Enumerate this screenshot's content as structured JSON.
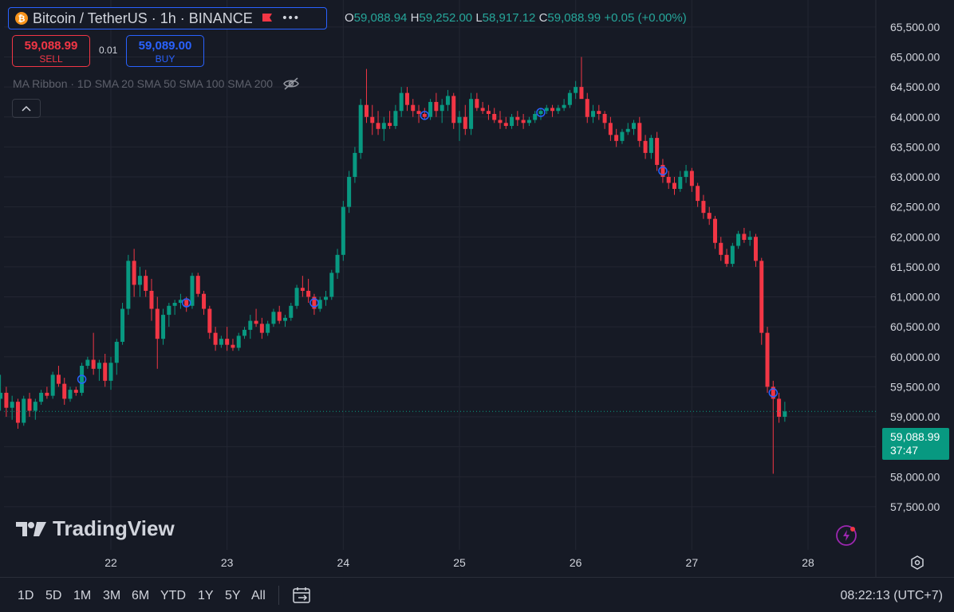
{
  "header": {
    "symbol_label": "Bitcoin / TetherUS · 1h · BINANCE",
    "coin_glyph": "₿",
    "ohlc": {
      "o_key": "O",
      "o": "59,088.94",
      "h_key": "H",
      "h": "59,252.00",
      "l_key": "L",
      "l": "58,917.12",
      "c_key": "C",
      "c": "59,088.99",
      "change": "+0.05 (+0.00%)"
    }
  },
  "trade": {
    "sell_price": "59,088.99",
    "sell_label": "SELL",
    "buy_price": "59,089.00",
    "buy_label": "BUY",
    "spread": "0.01"
  },
  "indicator": {
    "label": "MA Ribbon · 1D SMA 20 SMA 50 SMA 100 SMA 200"
  },
  "last_price": {
    "price": "59,088.99",
    "countdown": "37:47"
  },
  "watermark": {
    "text": "TradingView"
  },
  "bottom": {
    "ranges": [
      "1D",
      "5D",
      "1M",
      "3M",
      "6M",
      "YTD",
      "1Y",
      "5Y",
      "All"
    ],
    "clock": "08:22:13 (UTC+7)"
  },
  "colors": {
    "up": "#089981",
    "down": "#f23645",
    "accent": "#2962ff",
    "bg": "#161a25",
    "grid": "#232632",
    "marker": "#1e3a8a"
  },
  "chart_data": {
    "type": "candlestick",
    "title": "Bitcoin / TetherUS · 1h · BINANCE",
    "ylim": [
      57250,
      65750
    ],
    "y_ticks": [
      57500,
      58000,
      58500,
      59000,
      59500,
      60000,
      60500,
      61000,
      61500,
      62000,
      62500,
      63000,
      63500,
      64000,
      64500,
      65000,
      65500
    ],
    "y_tick_labels": [
      "57,500.00",
      "58,000.00",
      "58,500.00",
      "59,000.00",
      "59,500.00",
      "60,000.00",
      "60,500.00",
      "61,000.00",
      "61,500.00",
      "62,000.00",
      "62,500.00",
      "63,000.00",
      "63,500.00",
      "64,000.00",
      "64,500.00",
      "65,000.00",
      "65,500.00"
    ],
    "x_ticks": [
      22,
      23,
      24,
      25,
      26,
      27,
      28
    ],
    "x_tick_labels": [
      "22",
      "23",
      "24",
      "25",
      "26",
      "27",
      "28"
    ],
    "x_range": [
      21,
      28.5
    ],
    "grid": true,
    "last_close": 59088.99,
    "ohlc_points": [
      [
        21.05,
        59300,
        59700,
        59100,
        59400
      ],
      [
        21.1,
        59400,
        59500,
        59000,
        59150
      ],
      [
        21.15,
        59150,
        59350,
        58950,
        59250
      ],
      [
        21.2,
        59250,
        59300,
        58800,
        58900
      ],
      [
        21.25,
        58900,
        59350,
        58850,
        59300
      ],
      [
        21.3,
        59300,
        59400,
        59000,
        59100
      ],
      [
        21.35,
        59100,
        59300,
        58950,
        59250
      ],
      [
        21.4,
        59250,
        59450,
        59200,
        59400
      ],
      [
        21.45,
        59400,
        59500,
        59300,
        59350
      ],
      [
        21.5,
        59350,
        59750,
        59300,
        59700
      ],
      [
        21.55,
        59700,
        59850,
        59500,
        59550
      ],
      [
        21.6,
        59550,
        59650,
        59200,
        59300
      ],
      [
        21.65,
        59300,
        59500,
        59250,
        59450
      ],
      [
        21.7,
        59450,
        59500,
        59350,
        59400
      ],
      [
        21.75,
        59400,
        59900,
        59350,
        59850
      ],
      [
        21.8,
        59850,
        60000,
        59800,
        59950
      ],
      [
        21.85,
        59950,
        60400,
        59700,
        59800
      ],
      [
        21.9,
        59800,
        59950,
        59600,
        59900
      ],
      [
        21.95,
        59900,
        60050,
        59500,
        59600
      ],
      [
        22.0,
        59600,
        60000,
        59450,
        59900
      ],
      [
        22.05,
        59900,
        60300,
        59700,
        60250
      ],
      [
        22.1,
        60250,
        60900,
        60200,
        60800
      ],
      [
        22.15,
        60800,
        61700,
        60700,
        61600
      ],
      [
        22.2,
        61600,
        61800,
        61000,
        61200
      ],
      [
        22.25,
        61200,
        61500,
        61000,
        61350
      ],
      [
        22.3,
        61350,
        61450,
        61000,
        61100
      ],
      [
        22.35,
        61100,
        61300,
        60600,
        60800
      ],
      [
        22.4,
        60800,
        61000,
        59800,
        60300
      ],
      [
        22.45,
        60300,
        60800,
        60200,
        60700
      ],
      [
        22.5,
        60700,
        60900,
        60500,
        60850
      ],
      [
        22.55,
        60850,
        60950,
        60700,
        60900
      ],
      [
        22.6,
        60900,
        61050,
        60800,
        60950
      ],
      [
        22.65,
        60950,
        61000,
        60750,
        60850
      ],
      [
        22.7,
        60850,
        61400,
        60800,
        61350
      ],
      [
        22.75,
        61350,
        61400,
        61000,
        61050
      ],
      [
        22.8,
        61050,
        61100,
        60700,
        60800
      ],
      [
        22.85,
        60800,
        60850,
        60300,
        60400
      ],
      [
        22.9,
        60400,
        60500,
        60100,
        60200
      ],
      [
        22.95,
        60200,
        60350,
        60150,
        60300
      ],
      [
        23.0,
        60300,
        60500,
        60100,
        60200
      ],
      [
        23.05,
        60200,
        60300,
        60100,
        60150
      ],
      [
        23.1,
        60150,
        60400,
        60100,
        60350
      ],
      [
        23.15,
        60350,
        60500,
        60300,
        60450
      ],
      [
        23.2,
        60450,
        60700,
        60300,
        60600
      ],
      [
        23.25,
        60600,
        60800,
        60500,
        60550
      ],
      [
        23.3,
        60550,
        60650,
        60300,
        60400
      ],
      [
        23.35,
        60400,
        60600,
        60350,
        60550
      ],
      [
        23.4,
        60550,
        60800,
        60500,
        60750
      ],
      [
        23.45,
        60750,
        60850,
        60550,
        60600
      ],
      [
        23.5,
        60600,
        60700,
        60500,
        60650
      ],
      [
        23.55,
        60650,
        60900,
        60600,
        60850
      ],
      [
        23.6,
        60850,
        61200,
        60800,
        61150
      ],
      [
        23.65,
        61150,
        61350,
        61000,
        61100
      ],
      [
        23.7,
        61100,
        61300,
        60900,
        61000
      ],
      [
        23.75,
        61000,
        61050,
        60700,
        60800
      ],
      [
        23.8,
        60800,
        61000,
        60750,
        60950
      ],
      [
        23.85,
        60950,
        61100,
        60850,
        61000
      ],
      [
        23.9,
        61000,
        61450,
        60950,
        61400
      ],
      [
        23.95,
        61400,
        61800,
        61300,
        61700
      ],
      [
        24.0,
        61700,
        62600,
        61600,
        62500
      ],
      [
        24.05,
        62500,
        63100,
        62400,
        63000
      ],
      [
        24.1,
        63000,
        63500,
        62900,
        63400
      ],
      [
        24.15,
        63400,
        64300,
        63300,
        64200
      ],
      [
        24.2,
        64200,
        64800,
        63900,
        64000
      ],
      [
        24.25,
        64000,
        64200,
        63700,
        63900
      ],
      [
        24.3,
        63900,
        64100,
        63700,
        63800
      ],
      [
        24.35,
        63800,
        64000,
        63600,
        63900
      ],
      [
        24.4,
        63900,
        64100,
        63800,
        63850
      ],
      [
        24.45,
        63850,
        64200,
        63800,
        64100
      ],
      [
        24.5,
        64100,
        64500,
        64000,
        64400
      ],
      [
        24.55,
        64400,
        64500,
        64100,
        64200
      ],
      [
        24.6,
        64200,
        64300,
        64000,
        64100
      ],
      [
        24.65,
        64100,
        64200,
        63900,
        64050
      ],
      [
        24.7,
        64050,
        64150,
        63950,
        64000
      ],
      [
        24.75,
        64000,
        64300,
        63950,
        64250
      ],
      [
        24.8,
        64250,
        64400,
        64000,
        64100
      ],
      [
        24.85,
        64100,
        64300,
        63900,
        64200
      ],
      [
        24.9,
        64200,
        64450,
        64100,
        64350
      ],
      [
        24.95,
        64350,
        64400,
        63800,
        63900
      ],
      [
        25.0,
        63900,
        64100,
        63600,
        64000
      ],
      [
        25.05,
        64000,
        64200,
        63700,
        63800
      ],
      [
        25.1,
        63800,
        64400,
        63700,
        64300
      ],
      [
        25.15,
        64300,
        64400,
        64100,
        64150
      ],
      [
        25.2,
        64150,
        64250,
        64050,
        64100
      ],
      [
        25.25,
        64100,
        64200,
        63950,
        64050
      ],
      [
        25.3,
        64050,
        64150,
        63900,
        63950
      ],
      [
        25.35,
        63950,
        64100,
        63800,
        63900
      ],
      [
        25.4,
        63900,
        64000,
        63800,
        63850
      ],
      [
        25.45,
        63850,
        64050,
        63800,
        64000
      ],
      [
        25.5,
        64000,
        64100,
        63850,
        63950
      ],
      [
        25.55,
        63950,
        64050,
        63800,
        63900
      ],
      [
        25.6,
        63900,
        64000,
        63850,
        63950
      ],
      [
        25.65,
        63950,
        64100,
        63900,
        64050
      ],
      [
        25.7,
        64050,
        64150,
        63950,
        64100
      ],
      [
        25.75,
        64100,
        64200,
        64050,
        64150
      ],
      [
        25.8,
        64150,
        64200,
        64000,
        64100
      ],
      [
        25.85,
        64100,
        64200,
        64050,
        64150
      ],
      [
        25.9,
        64150,
        64300,
        64100,
        64200
      ],
      [
        25.95,
        64200,
        64450,
        64150,
        64400
      ],
      [
        26.0,
        64400,
        64600,
        64300,
        64500
      ],
      [
        26.05,
        64500,
        65000,
        64450,
        64300
      ],
      [
        26.1,
        64300,
        64400,
        63900,
        64000
      ],
      [
        26.15,
        64000,
        64200,
        63900,
        64100
      ],
      [
        26.2,
        64100,
        64200,
        63950,
        64050
      ],
      [
        26.25,
        64050,
        64100,
        63800,
        63900
      ],
      [
        26.3,
        63900,
        64000,
        63600,
        63700
      ],
      [
        26.35,
        63700,
        63800,
        63500,
        63600
      ],
      [
        26.4,
        63600,
        63800,
        63550,
        63750
      ],
      [
        26.45,
        63750,
        63900,
        63700,
        63800
      ],
      [
        26.5,
        63800,
        63950,
        63700,
        63900
      ],
      [
        26.55,
        63900,
        64000,
        63500,
        63600
      ],
      [
        26.6,
        63600,
        63700,
        63300,
        63400
      ],
      [
        26.65,
        63400,
        63700,
        63300,
        63650
      ],
      [
        26.7,
        63650,
        63750,
        63100,
        63200
      ],
      [
        26.75,
        63200,
        63300,
        62900,
        63000
      ],
      [
        26.8,
        63000,
        63100,
        62800,
        62900
      ],
      [
        26.85,
        62900,
        63000,
        62700,
        62800
      ],
      [
        26.9,
        62800,
        63100,
        62750,
        63000
      ],
      [
        26.95,
        63000,
        63200,
        62900,
        63100
      ],
      [
        27.0,
        63100,
        63150,
        62750,
        62850
      ],
      [
        27.05,
        62850,
        62900,
        62500,
        62600
      ],
      [
        27.1,
        62600,
        62700,
        62300,
        62400
      ],
      [
        27.15,
        62400,
        62500,
        62200,
        62300
      ],
      [
        27.2,
        62300,
        62350,
        61800,
        61900
      ],
      [
        27.25,
        61900,
        62000,
        61600,
        61700
      ],
      [
        27.3,
        61700,
        61800,
        61500,
        61550
      ],
      [
        27.35,
        61550,
        61900,
        61500,
        61850
      ],
      [
        27.4,
        61850,
        62100,
        61800,
        62050
      ],
      [
        27.45,
        62050,
        62150,
        61900,
        61950
      ],
      [
        27.5,
        61950,
        62100,
        61850,
        62000
      ],
      [
        27.55,
        62000,
        62050,
        61500,
        61600
      ],
      [
        27.6,
        61600,
        61650,
        60200,
        60400
      ],
      [
        27.65,
        60400,
        60500,
        59400,
        59500
      ],
      [
        27.7,
        59500,
        59600,
        58050,
        59300
      ],
      [
        27.75,
        59300,
        59400,
        58900,
        59000
      ],
      [
        27.8,
        59000,
        59250,
        58917,
        59088.99
      ]
    ],
    "markers": [
      21.75,
      22.65,
      23.75,
      24.7,
      25.7,
      26.75,
      27.7
    ]
  }
}
